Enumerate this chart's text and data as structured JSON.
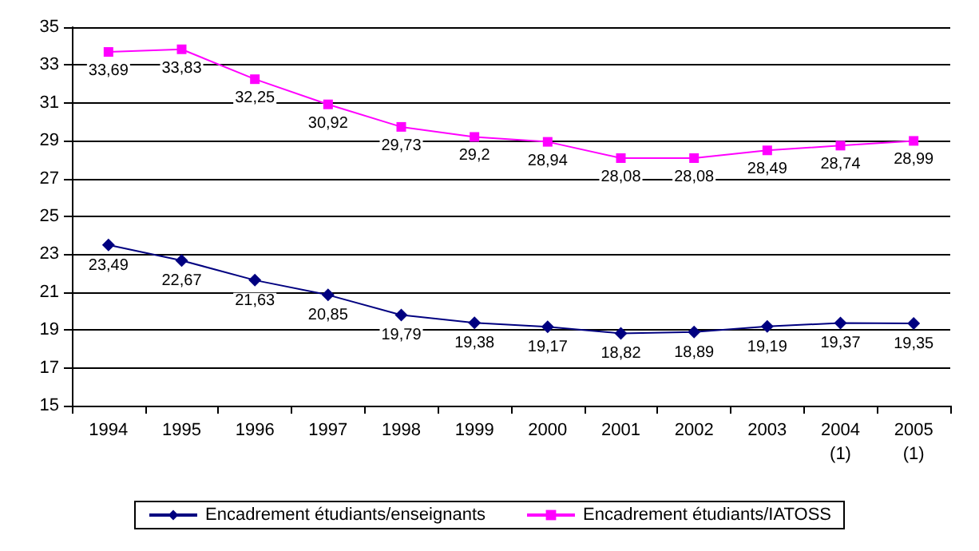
{
  "chart_data": {
    "type": "line",
    "categories": [
      "1994",
      "1995",
      "1996",
      "1997",
      "1998",
      "1999",
      "2000",
      "2001",
      "2002",
      "2003",
      "2004\n(1)",
      "2005\n(1)"
    ],
    "series": [
      {
        "name": "Encadrement étudiants/enseignants",
        "color": "#000080",
        "marker": "diamond",
        "values": [
          23.49,
          22.67,
          21.63,
          20.85,
          19.79,
          19.38,
          19.17,
          18.82,
          18.89,
          19.19,
          19.37,
          19.35
        ],
        "value_labels": [
          "23,49",
          "22,67",
          "21,63",
          "20,85",
          "19,79",
          "19,38",
          "19,17",
          "18,82",
          "18,89",
          "19,19",
          "19,37",
          "19,35"
        ]
      },
      {
        "name": "Encadrement étudiants/IATOSS",
        "color": "#ff00ff",
        "marker": "square",
        "values": [
          33.69,
          33.83,
          32.25,
          30.92,
          29.73,
          29.2,
          28.94,
          28.08,
          28.08,
          28.49,
          28.74,
          28.99
        ],
        "value_labels": [
          "33,69",
          "33,83",
          "32,25",
          "30,92",
          "29,73",
          "29,2",
          "28,94",
          "28,08",
          "28,08",
          "28,49",
          "28,74",
          "28,99"
        ]
      }
    ],
    "ylim": [
      15,
      35
    ],
    "yticks": [
      15,
      17,
      19,
      21,
      23,
      25,
      27,
      29,
      31,
      33,
      35
    ],
    "grid": "y",
    "legend": "bottom",
    "line_style": "solid"
  }
}
